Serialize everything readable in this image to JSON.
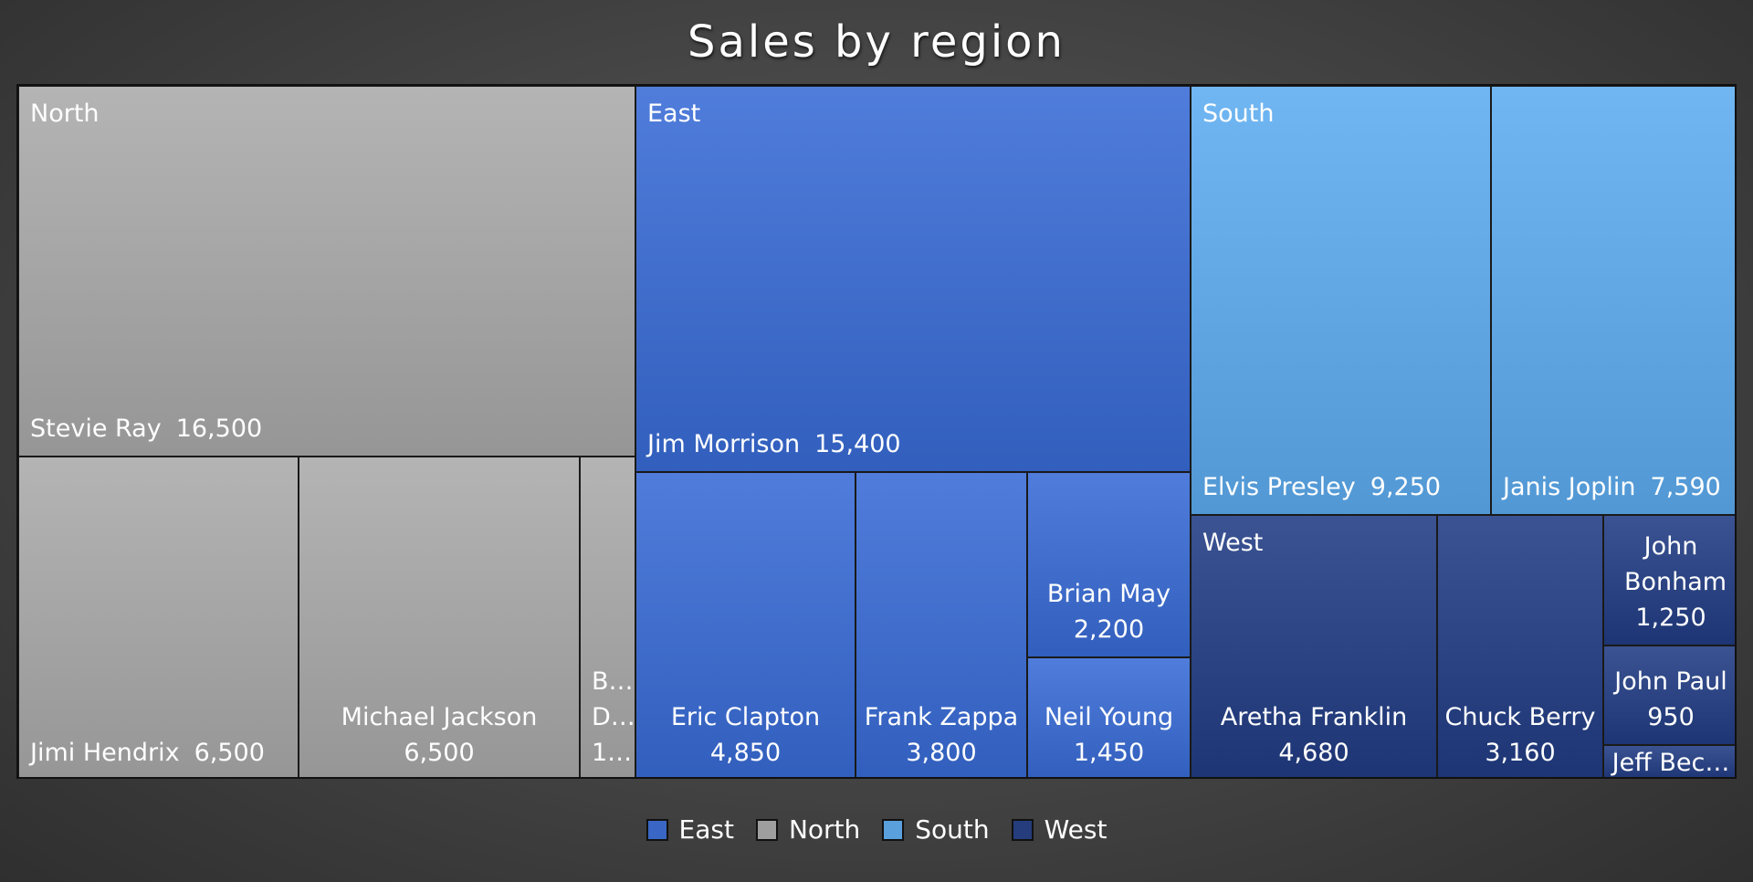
{
  "chart_data": {
    "type": "treemap",
    "title": "Sales by region",
    "regions": [
      {
        "name": "North",
        "color": "#9e9e9e",
        "items": [
          {
            "name": "Stevie Ray",
            "value": 16500,
            "label": "16,500"
          },
          {
            "name": "Jimi Hendrix",
            "value": 6500,
            "label": "6,500"
          },
          {
            "name": "Michael Jackson",
            "value": 6500,
            "label": "6,500"
          },
          {
            "name": "B… D…",
            "value": 1000,
            "label": "1…"
          }
        ]
      },
      {
        "name": "East",
        "color": "#3a67c5",
        "items": [
          {
            "name": "Jim Morrison",
            "value": 15400,
            "label": "15,400"
          },
          {
            "name": "Eric Clapton",
            "value": 4850,
            "label": "4,850"
          },
          {
            "name": "Frank Zappa",
            "value": 3800,
            "label": "3,800"
          },
          {
            "name": "Brian May",
            "value": 2200,
            "label": "2,200"
          },
          {
            "name": "Neil Young",
            "value": 1450,
            "label": "1,450"
          }
        ]
      },
      {
        "name": "South",
        "color": "#5aa0dc",
        "items": [
          {
            "name": "Elvis Presley",
            "value": 9250,
            "label": "9,250"
          },
          {
            "name": "Janis Joplin",
            "value": 7590,
            "label": "7,590"
          }
        ]
      },
      {
        "name": "West",
        "color": "#253d7c",
        "items": [
          {
            "name": "Aretha Franklin",
            "value": 4680,
            "label": "4,680"
          },
          {
            "name": "Chuck Berry",
            "value": 3160,
            "label": "3,160"
          },
          {
            "name": "John Bonham",
            "value": 1250,
            "label": "1,250"
          },
          {
            "name": "John Paul",
            "value": 950,
            "label": "950"
          },
          {
            "name": "Jeff Bec…",
            "value": 600,
            "label": ""
          }
        ]
      }
    ],
    "legend": [
      "East",
      "North",
      "South",
      "West"
    ],
    "legend_position": "bottom"
  }
}
